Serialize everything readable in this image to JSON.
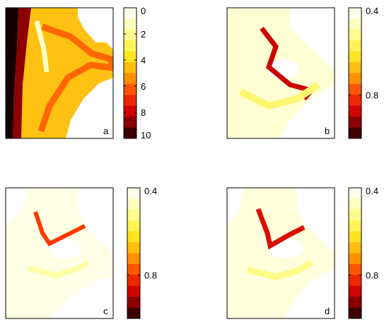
{
  "chart_data": [
    {
      "type": "heatmap",
      "panel_label": "a",
      "colormap": "hot (reversed: white = low, black = high)",
      "colorbar": {
        "ticks": [
          "0",
          "2",
          "4",
          "6",
          "8",
          "10"
        ],
        "range": [
          0,
          10
        ]
      },
      "description_values": {
        "background": 4.5,
        "ridge_band": 6,
        "left_edge_dark": 10,
        "upper_pale_streak": 1
      }
    },
    {
      "type": "heatmap",
      "panel_label": "b",
      "colormap": "hot (reversed)",
      "colorbar": {
        "ticks": [
          "0.4",
          "0.8"
        ],
        "range": [
          0.4,
          1.0
        ]
      },
      "description_values": {
        "background": 0.45,
        "ridge_band": 0.88,
        "pale_ring": 0.55
      }
    },
    {
      "type": "heatmap",
      "panel_label": "c",
      "colormap": "hot (reversed)",
      "colorbar": {
        "ticks": [
          "0.4",
          "0.8"
        ],
        "range": [
          0.4,
          1.0
        ]
      },
      "description_values": {
        "background": 0.43,
        "ridge_band": 0.8,
        "pale_ring": 0.5
      }
    },
    {
      "type": "heatmap",
      "panel_label": "d",
      "colormap": "hot (reversed)",
      "colorbar": {
        "ticks": [
          "0.4",
          "0.8"
        ],
        "range": [
          0.4,
          1.0
        ]
      },
      "description_values": {
        "background": 0.44,
        "ridge_band": 0.86,
        "pale_ring": 0.53
      }
    }
  ]
}
